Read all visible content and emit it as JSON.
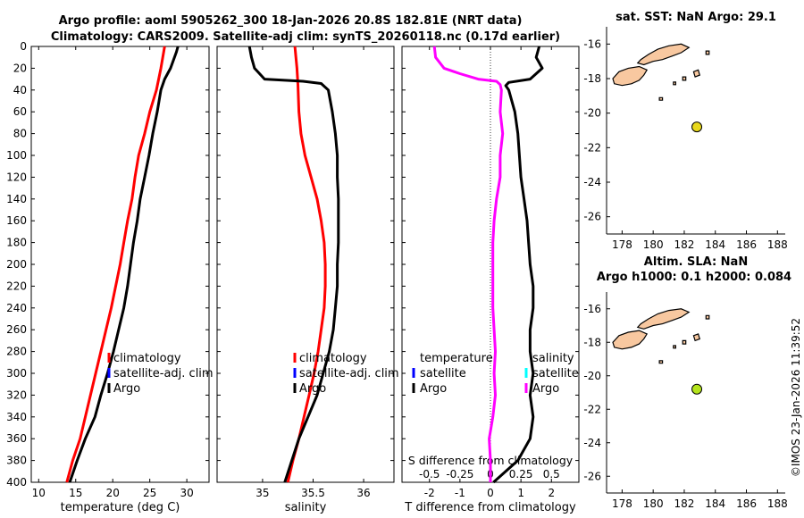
{
  "title": {
    "line1": "Argo profile: aoml 5905262_300 18-Jan-2026 20.8S 182.81E (NRT data)",
    "line2": "Climatology: CARS2009. Satellite-adj clim: synTS_20260118.nc (0.17d earlier)"
  },
  "copyright": "©IMOS 23-Jan-2026 11:39:52",
  "colors": {
    "climatology": "#ff0000",
    "satellite": "#0000ff",
    "argo": "#000000",
    "sal_diff": "#ff00ff",
    "sal_sat": "#00ffff",
    "land": "#f8c8a0",
    "sst_marker": "#e8d81c",
    "sla_marker": "#b4e41c"
  },
  "depth_axis": {
    "range": [
      0,
      400
    ],
    "ticks": [
      0,
      20,
      40,
      60,
      80,
      100,
      120,
      140,
      160,
      180,
      200,
      220,
      240,
      260,
      280,
      300,
      320,
      340,
      360,
      380,
      400
    ]
  },
  "chart_data": [
    {
      "type": "line",
      "name": "temperature-profile",
      "xlabel": "temperature (deg C)",
      "xlim": [
        9,
        33
      ],
      "xticks": [
        10,
        15,
        20,
        25,
        30
      ],
      "ylim": [
        400,
        0
      ],
      "legend": {
        "placement": "right",
        "entries": [
          {
            "label": "climatology",
            "color_key": "climatology"
          },
          {
            "label": "satellite-adj. clim",
            "color_key": "satellite"
          },
          {
            "label": "Argo",
            "color_key": "argo"
          }
        ]
      },
      "series": [
        {
          "name": "climatology",
          "color_key": "climatology",
          "depth": [
            0,
            20,
            40,
            60,
            80,
            100,
            120,
            140,
            160,
            180,
            200,
            220,
            240,
            260,
            280,
            300,
            320,
            340,
            360,
            380,
            400
          ],
          "values": [
            27.0,
            26.5,
            25.9,
            25.0,
            24.3,
            23.5,
            23.0,
            22.6,
            22.0,
            21.5,
            21.0,
            20.4,
            19.8,
            19.1,
            18.4,
            17.7,
            17.0,
            16.3,
            15.6,
            14.6,
            13.8
          ]
        },
        {
          "name": "Argo",
          "color_key": "argo",
          "depth": [
            0,
            5,
            20,
            30,
            40,
            60,
            80,
            100,
            120,
            140,
            160,
            180,
            200,
            220,
            240,
            260,
            280,
            300,
            320,
            340,
            360,
            380,
            400
          ],
          "values": [
            28.8,
            28.6,
            27.8,
            27.0,
            26.5,
            26.0,
            25.4,
            24.9,
            24.3,
            23.7,
            23.3,
            22.8,
            22.4,
            22.0,
            21.5,
            20.8,
            20.1,
            19.3,
            18.4,
            17.6,
            16.3,
            15.2,
            14.2
          ]
        }
      ]
    },
    {
      "type": "line",
      "name": "salinity-profile",
      "xlabel": "salinity",
      "xlim": [
        34.55,
        36.3
      ],
      "xticks": [
        35,
        35.5,
        36
      ],
      "ylim": [
        400,
        0
      ],
      "legend": {
        "placement": "right",
        "entries": [
          {
            "label": "climatology",
            "color_key": "climatology"
          },
          {
            "label": "satellite-adj. clim",
            "color_key": "satellite"
          },
          {
            "label": "Argo",
            "color_key": "argo"
          }
        ]
      },
      "series": [
        {
          "name": "climatology",
          "color_key": "climatology",
          "depth": [
            0,
            20,
            35,
            60,
            80,
            100,
            120,
            140,
            160,
            180,
            200,
            220,
            240,
            260,
            280,
            300,
            320,
            340,
            360,
            380,
            400
          ],
          "values": [
            35.32,
            35.34,
            35.35,
            35.36,
            35.38,
            35.42,
            35.48,
            35.54,
            35.58,
            35.61,
            35.62,
            35.62,
            35.61,
            35.58,
            35.55,
            35.51,
            35.46,
            35.41,
            35.36,
            35.3,
            35.25
          ]
        },
        {
          "name": "Argo",
          "color_key": "argo",
          "depth": [
            0,
            10,
            20,
            30,
            32,
            34,
            40,
            60,
            80,
            100,
            120,
            140,
            160,
            180,
            200,
            220,
            240,
            260,
            280,
            300,
            320,
            340,
            360,
            380,
            400
          ],
          "values": [
            34.87,
            34.89,
            34.92,
            35.02,
            35.4,
            35.58,
            35.65,
            35.69,
            35.72,
            35.74,
            35.74,
            35.75,
            35.75,
            35.75,
            35.74,
            35.74,
            35.72,
            35.7,
            35.66,
            35.6,
            35.54,
            35.45,
            35.36,
            35.29,
            35.22
          ]
        }
      ]
    },
    {
      "type": "line",
      "name": "difference-profile",
      "xlabel": "T difference from climatology",
      "xlabel_top": "S difference from climatology",
      "xlim": [
        -2.9,
        2.9
      ],
      "xticks": [
        -2,
        -1,
        0,
        1,
        2
      ],
      "top_ticks": [
        {
          "value": -0.5,
          "label": "-0.5"
        },
        {
          "value": -0.25,
          "label": "-0.25"
        },
        {
          "value": 0,
          "label": "0"
        },
        {
          "value": 0.25,
          "label": "0.25"
        },
        {
          "value": 0.5,
          "label": "0.5"
        }
      ],
      "top_scale": 4,
      "ylim": [
        400,
        0
      ],
      "legend": {
        "placement": "left-and-right",
        "left_title": "temperature",
        "right_title": "salinity",
        "left_entries": [
          {
            "label": "satellite",
            "color_key": "satellite"
          },
          {
            "label": "Argo",
            "color_key": "argo"
          }
        ],
        "right_entries": [
          {
            "label": "satellite",
            "color_key": "sal_sat"
          },
          {
            "label": "Argo",
            "color_key": "sal_diff"
          }
        ]
      },
      "series": [
        {
          "name": "T difference (Argo)",
          "color_key": "argo",
          "depth": [
            0,
            10,
            20,
            30,
            33,
            36,
            40,
            60,
            80,
            100,
            120,
            140,
            160,
            180,
            200,
            220,
            240,
            260,
            280,
            300,
            320,
            340,
            360,
            380,
            390,
            400
          ],
          "values": [
            1.6,
            1.5,
            1.7,
            1.3,
            0.6,
            0.5,
            0.6,
            0.8,
            0.9,
            0.95,
            1.0,
            1.1,
            1.2,
            1.25,
            1.3,
            1.4,
            1.4,
            1.3,
            1.3,
            1.4,
            1.3,
            1.4,
            1.3,
            0.9,
            0.5,
            0.1
          ]
        },
        {
          "name": "S difference (Argo)",
          "color_key": "sal_diff",
          "depth": [
            0,
            10,
            20,
            25,
            30,
            32,
            35,
            40,
            60,
            80,
            100,
            120,
            140,
            160,
            180,
            200,
            220,
            240,
            260,
            280,
            300,
            320,
            340,
            360,
            380,
            400
          ],
          "values": [
            -0.46,
            -0.45,
            -0.38,
            -0.25,
            -0.1,
            0.05,
            0.08,
            0.09,
            0.08,
            0.1,
            0.08,
            0.08,
            0.05,
            0.03,
            0.02,
            0.02,
            0.02,
            0.02,
            0.03,
            0.04,
            0.03,
            0.04,
            0.02,
            -0.01,
            0.0,
            0.0
          ]
        }
      ]
    },
    {
      "type": "scatter",
      "name": "sst-map",
      "title": "sat. SST: NaN Argo: 29.1",
      "xlim": [
        177,
        188.5
      ],
      "ylim": [
        -27,
        -15
      ],
      "xticks": [
        178,
        180,
        182,
        184,
        186,
        188
      ],
      "yticks": [
        -16,
        -18,
        -20,
        -22,
        -24,
        -26
      ],
      "points": [
        {
          "lon": 182.81,
          "lat": -20.8,
          "color_key": "sst_marker"
        }
      ]
    },
    {
      "type": "scatter",
      "name": "sla-map",
      "title": "Altim. SLA: NaN",
      "subtitle": "Argo h1000: 0.1 h2000: 0.084",
      "xlim": [
        177,
        188.5
      ],
      "ylim": [
        -27,
        -15
      ],
      "xticks": [
        178,
        180,
        182,
        184,
        186,
        188
      ],
      "yticks": [
        -16,
        -18,
        -20,
        -22,
        -24,
        -26
      ],
      "points": [
        {
          "lon": 182.81,
          "lat": -20.8,
          "color_key": "sla_marker"
        }
      ]
    }
  ]
}
